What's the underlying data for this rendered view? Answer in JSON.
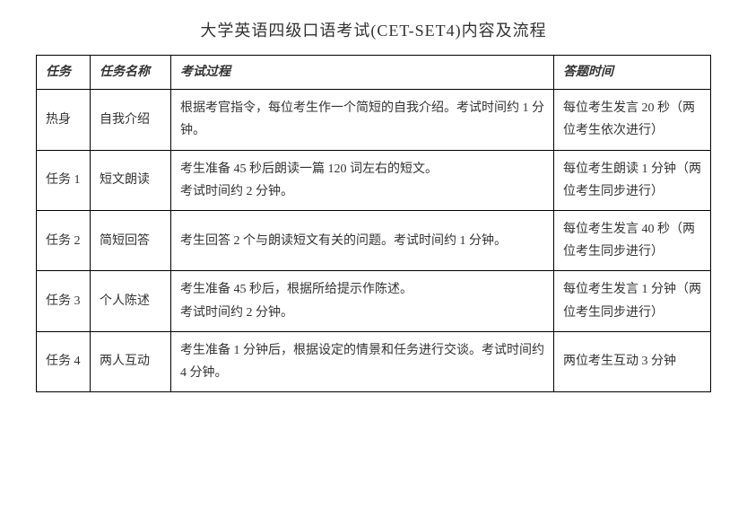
{
  "title": "大学英语四级口语考试(CET-SET4)内容及流程",
  "headers": {
    "task": "任务",
    "name": "任务名称",
    "process": "考试过程",
    "time": "答题时间"
  },
  "rows": [
    {
      "task": "热身",
      "name": "自我介绍",
      "process": "根据考官指令，每位考生作一个简短的自我介绍。考试时间约 1 分钟。",
      "time": "每位考生发言 20 秒（两位考生依次进行）"
    },
    {
      "task": "任务 1",
      "name": "短文朗读",
      "process": "考生准备 45 秒后朗读一篇 120 词左右的短文。\n考试时间约 2 分钟。",
      "time": "每位考生朗读 1 分钟（两位考生同步进行）"
    },
    {
      "task": "任务 2",
      "name": "简短回答",
      "process": "考生回答 2 个与朗读短文有关的问题。考试时间约 1 分钟。",
      "time": "每位考生发言 40 秒（两位考生同步进行）"
    },
    {
      "task": "任务 3",
      "name": "个人陈述",
      "process": "考生准备 45 秒后，根据所给提示作陈述。\n考试时间约 2 分钟。",
      "time": "每位考生发言 1 分钟（两位考生同步进行）"
    },
    {
      "task": "任务 4",
      "name": "两人互动",
      "process": "考生准备 1 分钟后，根据设定的情景和任务进行交谈。考试时间约 4 分钟。",
      "time": "两位考生互动 3 分钟"
    }
  ]
}
